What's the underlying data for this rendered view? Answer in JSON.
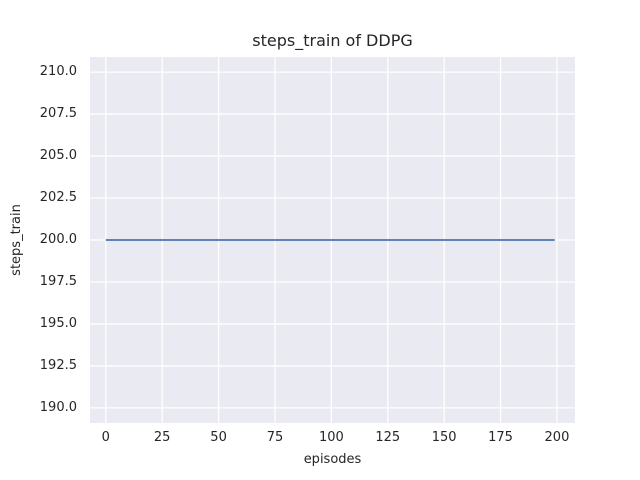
{
  "chart_data": {
    "type": "line",
    "title": "steps_train of DDPG",
    "xlabel": "episodes",
    "ylabel": "steps_train",
    "xlim": [
      -7,
      208
    ],
    "ylim": [
      189.1,
      210.9
    ],
    "xticks": [
      0,
      25,
      50,
      75,
      100,
      125,
      150,
      175,
      200
    ],
    "xtick_labels": [
      "0",
      "25",
      "50",
      "75",
      "100",
      "125",
      "150",
      "175",
      "200"
    ],
    "yticks": [
      190.0,
      192.5,
      195.0,
      197.5,
      200.0,
      202.5,
      205.0,
      207.5,
      210.0
    ],
    "ytick_labels": [
      "190.0",
      "192.5",
      "195.0",
      "197.5",
      "200.0",
      "202.5",
      "205.0",
      "207.5",
      "210.0"
    ],
    "grid": true,
    "legend": false,
    "series": [
      {
        "name": "steps_train",
        "color": "#4C72B0",
        "x": [
          0,
          199
        ],
        "y": [
          200,
          200
        ]
      }
    ],
    "style": {
      "axes_bg": "#EAEAF2",
      "grid_color": "#FFFFFF",
      "text_color": "#262626"
    }
  }
}
